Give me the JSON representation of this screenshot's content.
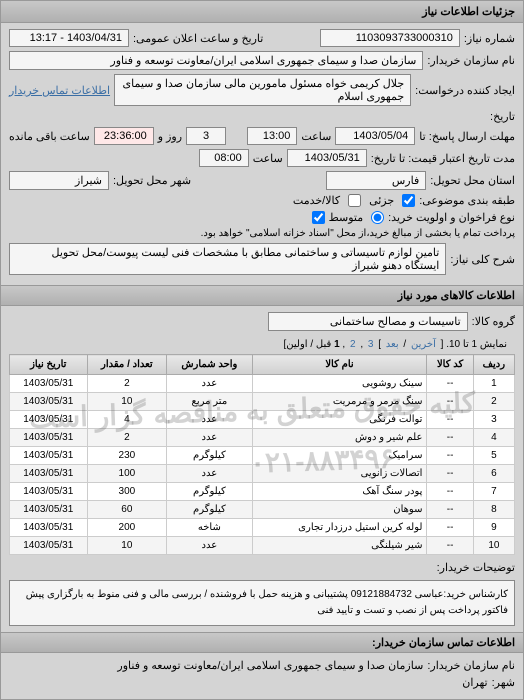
{
  "panel_title": "جزئیات اطلاعات نیاز",
  "need_no_label": "شماره نیاز:",
  "need_no": "1103093733000310",
  "announce_label": "تاریخ و ساعت اعلان عمومی:",
  "announce_value": "1403/04/31 - 13:17",
  "buyer_label": "نام سازمان خریدار:",
  "buyer_name": "سازمان صدا و سیمای جمهوری اسلامی ایران/معاونت توسعه و فناور",
  "requester_label": "ایجاد کننده درخواست:",
  "requester_name": "جلال کریمی خواه مسئول مامورین مالی   سازمان صدا و سیمای جمهوری اسلام",
  "contact_link": "اطلاعات تماس خریدار",
  "history_label": "تاریخ:",
  "deadline_label": "مهلت ارسال پاسخ: تا",
  "deadline_date": "1403/05/04",
  "time_label": "ساعت",
  "deadline_time": "13:00",
  "remain_days": "3",
  "day_label": "روز و",
  "remain_time": "23:36:00",
  "remain_suffix": "ساعت باقی مانده",
  "price_validity_label": "مدت تاریخ اعتبار قیمت: تا تاریخ:",
  "price_date": "1403/05/31",
  "price_time": "08:00",
  "delivery_addr_label": "استان محل تحویل:",
  "province": "فارس",
  "city_label": "شهر محل تحویل:",
  "city": "شیراز",
  "budget_cat_label": "طبقه بندی موضوعی:",
  "partial_label": "جزئی",
  "cash_label": "کالا/خدمت",
  "priority_label": "نوع فراخوان و اولویت خرید:",
  "priority_medium": "متوسط",
  "payment_note": "پرداخت تمام یا بخشی از مبالغ خرید،از محل \"اسناد خزانه اسلامی\" خواهد بود.",
  "need_title_label": "شرح کلی نیاز:",
  "need_title": "تامین لوازم تاسیساتی و ساختمانی مطابق با مشخصات فنی لیست پیوست/محل تحویل ایستگاه دهنو شیراز",
  "goods_header": "اطلاعات کالاهای مورد نیاز",
  "group_label": "گروه کالا:",
  "group_value": "تاسیسات و مصالح ساختمانی",
  "pager_text_pre": "نمایش 1 تا 10. [ ",
  "pager_last": "آخرین",
  "pager_next": "بعد",
  "pager_p3": "3",
  "pager_p2": "2",
  "pager_p1": "1",
  "pager_first_suffix": " قبل / اولین]",
  "cols": {
    "row": "ردیف",
    "code": "کد کالا",
    "name": "نام کالا",
    "unit": "واحد شمارش",
    "qty": "تعداد / مقدار",
    "date": "تاریخ نیاز"
  },
  "rows": [
    {
      "n": "1",
      "code": "--",
      "name": "سینک روشویی",
      "unit": "عدد",
      "qty": "2",
      "date": "1403/05/31"
    },
    {
      "n": "2",
      "code": "--",
      "name": "سنگ مرمر و مرمریت",
      "unit": "متر مربع",
      "qty": "10",
      "date": "1403/05/31"
    },
    {
      "n": "3",
      "code": "--",
      "name": "توالت فرنگی",
      "unit": "عدد",
      "qty": "4",
      "date": "1403/05/31"
    },
    {
      "n": "4",
      "code": "--",
      "name": "علم شیر و دوش",
      "unit": "عدد",
      "qty": "2",
      "date": "1403/05/31"
    },
    {
      "n": "5",
      "code": "--",
      "name": "سرامیک",
      "unit": "کیلوگرم",
      "qty": "230",
      "date": "1403/05/31"
    },
    {
      "n": "6",
      "code": "--",
      "name": "اتصالات زانویی",
      "unit": "عدد",
      "qty": "100",
      "date": "1403/05/31"
    },
    {
      "n": "7",
      "code": "--",
      "name": "پودر سنگ آهک",
      "unit": "کیلوگرم",
      "qty": "300",
      "date": "1403/05/31"
    },
    {
      "n": "8",
      "code": "--",
      "name": "سوهان",
      "unit": "کیلوگرم",
      "qty": "60",
      "date": "1403/05/31"
    },
    {
      "n": "9",
      "code": "--",
      "name": "لوله کرین استیل درزدار تجاری",
      "unit": "شاخه",
      "qty": "200",
      "date": "1403/05/31"
    },
    {
      "n": "10",
      "code": "--",
      "name": "شیر شیلنگی",
      "unit": "عدد",
      "qty": "10",
      "date": "1403/05/31"
    }
  ],
  "notes_label": "توضیحات خریدار:",
  "notes_text": "کارشناس خرید:عباسی 09121884732 پشتیبانی و هزینه حمل با فروشنده / بررسی مالی و فنی منوط به بارگزاری پیش فاکتور پرداخت پس از نصب و تست و تایید فنی",
  "contact_header": "اطلاعات تماس سازمان خریدار:",
  "org_label": "نام سازمان خریدار:",
  "org_value": "سازمان صدا و سیمای جمهوری اسلامی ایران/معاونت توسعه و فناور",
  "city2_label": "شهر:",
  "city2_value": "تهران",
  "watermark1": "کلیه حقوق متعلق به مناقصه گزار است",
  "watermark2": "۰۲۱-۸۸۳۴۹۶"
}
